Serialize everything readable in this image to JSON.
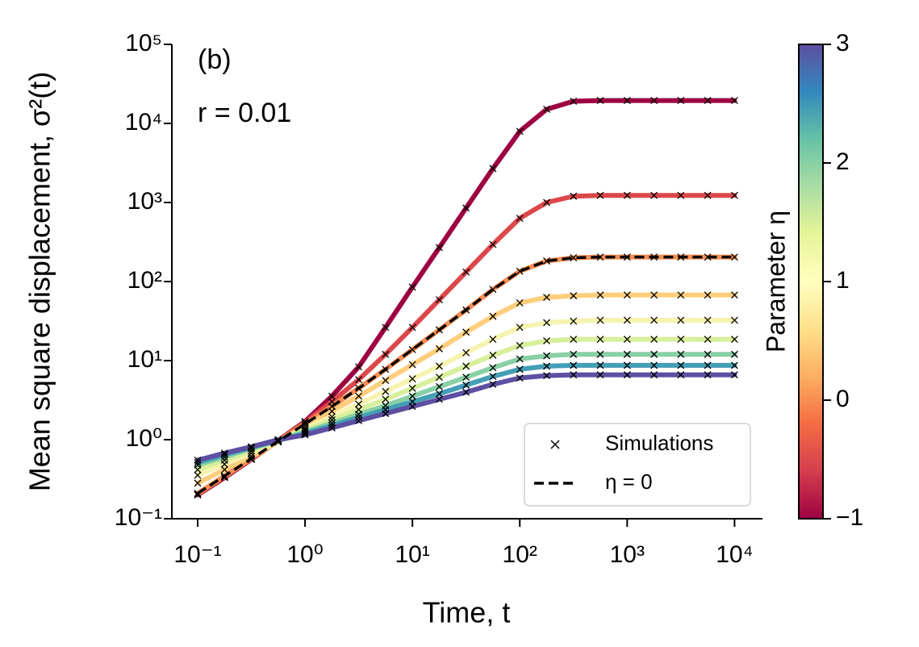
{
  "chart_data": {
    "type": "line",
    "xlabel": "Time, t",
    "ylabel": "Mean square displacement, σ²(t)",
    "annotations": [
      {
        "text": "(b)"
      },
      {
        "text": "r = 0.01"
      }
    ],
    "xscale": "log",
    "yscale": "log",
    "xlim": [
      0.0575,
      18200
    ],
    "ylim": [
      0.1,
      100000
    ],
    "xticks": [
      {
        "value": 0.1,
        "label": "10⁻¹"
      },
      {
        "value": 1,
        "label": "10⁰"
      },
      {
        "value": 10,
        "label": "10¹"
      },
      {
        "value": 100,
        "label": "10²"
      },
      {
        "value": 1000,
        "label": "10³"
      },
      {
        "value": 10000,
        "label": "10⁴"
      }
    ],
    "yticks": [
      {
        "value": 0.1,
        "label": "10⁻¹"
      },
      {
        "value": 1,
        "label": "10⁰"
      },
      {
        "value": 10,
        "label": "10¹"
      },
      {
        "value": 100,
        "label": "10²"
      },
      {
        "value": 1000,
        "label": "10³"
      },
      {
        "value": 10000,
        "label": "10⁴"
      },
      {
        "value": 100000,
        "label": "10⁵"
      }
    ],
    "x": [
      0.1,
      0.178,
      0.316,
      0.562,
      1,
      1.78,
      3.16,
      5.62,
      10,
      17.8,
      31.6,
      56.2,
      100,
      178,
      316,
      562,
      1000,
      1780,
      3160,
      5620,
      10000
    ],
    "series": [
      {
        "color": "#9e0142",
        "values": [
          0.2,
          0.331,
          0.562,
          0.977,
          1.7,
          3.55,
          8.32,
          26.3,
          85.1,
          269,
          851,
          2690,
          7940,
          15100,
          19100,
          19500,
          19500,
          19500,
          19500,
          19500,
          19500
        ]
      },
      {
        "color": "#dc484a",
        "values": [
          0.204,
          0.339,
          0.575,
          0.977,
          1.66,
          3.02,
          5.75,
          12.0,
          26.3,
          58.9,
          132,
          295,
          631,
          1000,
          1200,
          1230,
          1230,
          1230,
          1230,
          1230,
          1230
        ]
      },
      {
        "color": "#f98e52",
        "dash_color": "#000000",
        "values": [
          0.209,
          0.347,
          0.575,
          0.955,
          1.58,
          2.63,
          4.47,
          7.76,
          13.8,
          24.5,
          43.7,
          79.4,
          135,
          182,
          200,
          204,
          204,
          204,
          204,
          204,
          204
        ]
      },
      {
        "color": "#fece7c",
        "values": [
          0.282,
          0.417,
          0.617,
          0.933,
          1.48,
          2.29,
          3.55,
          5.62,
          8.91,
          14.1,
          22.9,
          36.3,
          53.7,
          63.1,
          66.1,
          67.6,
          67.6,
          67.6,
          67.6,
          67.6,
          67.6
        ]
      },
      {
        "color": "#f6f3b0",
        "values": [
          0.355,
          0.49,
          0.676,
          0.955,
          1.38,
          1.95,
          2.82,
          4.07,
          5.89,
          8.51,
          12.6,
          18.6,
          26.3,
          30.2,
          31.6,
          32.4,
          32.4,
          32.4,
          32.4,
          32.4,
          32.4
        ]
      },
      {
        "color": "#d8ef9b",
        "values": [
          0.417,
          0.55,
          0.724,
          0.977,
          1.32,
          1.78,
          2.4,
          3.24,
          4.47,
          6.17,
          8.51,
          11.7,
          15.5,
          17.8,
          18.6,
          18.6,
          18.6,
          18.6,
          18.6,
          18.6,
          18.6
        ]
      },
      {
        "color": "#89d0a5",
        "values": [
          0.479,
          0.603,
          0.776,
          0.977,
          1.26,
          1.62,
          2.09,
          2.69,
          3.55,
          4.68,
          6.17,
          8.13,
          10.5,
          11.5,
          12.0,
          12.0,
          12.0,
          12.0,
          12.0,
          12.0,
          12.0
        ]
      },
      {
        "color": "#439eb6",
        "values": [
          0.513,
          0.646,
          0.794,
          0.977,
          1.2,
          1.51,
          1.91,
          2.4,
          3.02,
          3.8,
          4.9,
          6.31,
          7.76,
          8.51,
          8.71,
          8.71,
          8.71,
          8.71,
          8.71,
          8.71,
          8.71
        ]
      },
      {
        "color": "#5e4fa2",
        "values": [
          0.55,
          0.676,
          0.813,
          1,
          1.15,
          1.41,
          1.74,
          2.14,
          2.63,
          3.24,
          3.98,
          5.01,
          6.03,
          6.46,
          6.61,
          6.61,
          6.61,
          6.61,
          6.61,
          6.61,
          6.61
        ]
      }
    ],
    "marker_color": "#000000",
    "legend": {
      "loc": "lower right",
      "entries": [
        {
          "label": "Simulations",
          "marker": "x",
          "color": "#000000"
        },
        {
          "label": "η = 0",
          "dash": true,
          "color": "#000000"
        }
      ]
    },
    "colorbar": {
      "label": "Parameter η",
      "lim": [
        -1,
        3
      ],
      "ticks": [
        {
          "value": -1,
          "label": "−1"
        },
        0,
        1,
        2,
        3
      ],
      "colors": [
        "#9e0142",
        "#d53e4f",
        "#f46d43",
        "#fdae61",
        "#fee08b",
        "#ffffbf",
        "#e6f598",
        "#abdda4",
        "#66c2a5",
        "#3288bd",
        "#5e4fa2"
      ]
    }
  }
}
